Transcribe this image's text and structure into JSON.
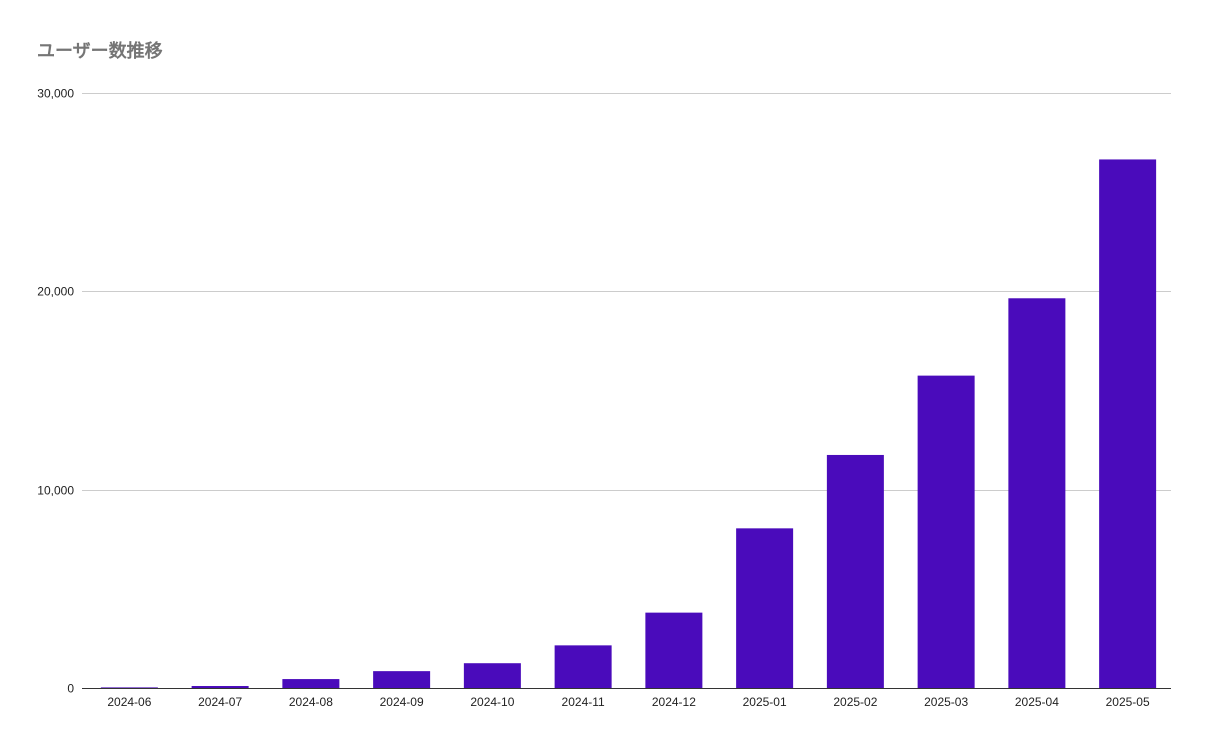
{
  "chart_data": {
    "type": "bar",
    "title": "ユーザー数推移",
    "xlabel": "",
    "ylabel": "",
    "categories": [
      "2024-06",
      "2024-07",
      "2024-08",
      "2024-09",
      "2024-10",
      "2024-11",
      "2024-12",
      "2025-01",
      "2025-02",
      "2025-03",
      "2025-04",
      "2025-05"
    ],
    "values": [
      30,
      100,
      450,
      850,
      1250,
      2150,
      3800,
      8050,
      11750,
      15750,
      19650,
      26650
    ],
    "ylim": [
      0,
      30000
    ],
    "yticks": [
      0,
      10000,
      20000,
      30000
    ],
    "ytick_labels": [
      "0",
      "10,000",
      "20,000",
      "30,000"
    ],
    "grid": true,
    "legend": "none",
    "bar_color": "#4a0bbb"
  }
}
